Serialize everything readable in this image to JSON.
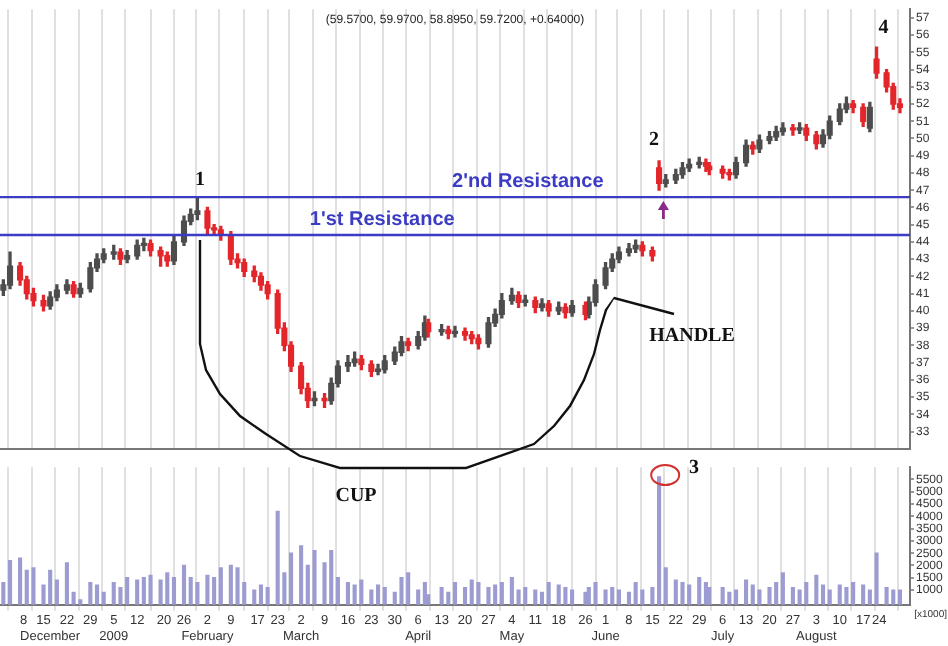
{
  "chart_data": [
    {
      "type": "candlestick",
      "title": "(59.5700, 59.9700, 58.8950, 59.7200, +0.64000)",
      "x": [
        "2008-12-03",
        "2008-12-05",
        "2008-12-08",
        "2008-12-10",
        "2008-12-12",
        "2008-12-15",
        "2008-12-17",
        "2008-12-19",
        "2008-12-22",
        "2008-12-24",
        "2008-12-26",
        "2008-12-29",
        "2008-12-31",
        "2009-01-02",
        "2009-01-05",
        "2009-01-07",
        "2009-01-09",
        "2009-01-12",
        "2009-01-14",
        "2009-01-16",
        "2009-01-19",
        "2009-01-21",
        "2009-01-23",
        "2009-01-26",
        "2009-01-28",
        "2009-01-30",
        "2009-02-02",
        "2009-02-04",
        "2009-02-06",
        "2009-02-09",
        "2009-02-11",
        "2009-02-13",
        "2009-02-16",
        "2009-02-18",
        "2009-02-20",
        "2009-02-23",
        "2009-02-25",
        "2009-02-27",
        "2009-03-02",
        "2009-03-04",
        "2009-03-06",
        "2009-03-09",
        "2009-03-11",
        "2009-03-13",
        "2009-03-16",
        "2009-03-18",
        "2009-03-20",
        "2009-03-23",
        "2009-03-25",
        "2009-03-27",
        "2009-03-30",
        "2009-04-01",
        "2009-04-03",
        "2009-04-06",
        "2009-04-08",
        "2009-04-09",
        "2009-04-13",
        "2009-04-15",
        "2009-04-17",
        "2009-04-20",
        "2009-04-22",
        "2009-04-24",
        "2009-04-27",
        "2009-04-29",
        "2009-05-01",
        "2009-05-04",
        "2009-05-06",
        "2009-05-08",
        "2009-05-11",
        "2009-05-13",
        "2009-05-15",
        "2009-05-18",
        "2009-05-20",
        "2009-05-22",
        "2009-05-26",
        "2009-05-27",
        "2009-05-29",
        "2009-06-01",
        "2009-06-03",
        "2009-06-05",
        "2009-06-08",
        "2009-06-10",
        "2009-06-12",
        "2009-06-15",
        "2009-06-17",
        "2009-06-19",
        "2009-06-22",
        "2009-06-24",
        "2009-06-26",
        "2009-06-29",
        "2009-07-01",
        "2009-07-02",
        "2009-07-06",
        "2009-07-08",
        "2009-07-10",
        "2009-07-13",
        "2009-07-15",
        "2009-07-17",
        "2009-07-20",
        "2009-07-22",
        "2009-07-24",
        "2009-07-27",
        "2009-07-29",
        "2009-07-31",
        "2009-08-03",
        "2009-08-05",
        "2009-08-07",
        "2009-08-10",
        "2009-08-12",
        "2009-08-14",
        "2009-08-17",
        "2009-08-19",
        "2009-08-21",
        "2009-08-24",
        "2009-08-26",
        "2009-08-28"
      ],
      "ohlc": [
        [
          41.2,
          41.8,
          40.9,
          41.5
        ],
        [
          41.5,
          43.4,
          41.3,
          42.6
        ],
        [
          42.6,
          42.8,
          41.5,
          41.8
        ],
        [
          41.8,
          42.0,
          40.7,
          41.0
        ],
        [
          41.0,
          41.3,
          40.3,
          40.6
        ],
        [
          40.6,
          40.9,
          40.0,
          40.3
        ],
        [
          40.3,
          41.1,
          40.1,
          40.8
        ],
        [
          40.8,
          41.5,
          40.6,
          41.2
        ],
        [
          41.2,
          41.8,
          41.0,
          41.5
        ],
        [
          41.5,
          41.7,
          40.8,
          41.0
        ],
        [
          41.0,
          41.6,
          40.8,
          41.3
        ],
        [
          41.3,
          42.8,
          41.1,
          42.5
        ],
        [
          42.5,
          43.3,
          42.3,
          43.0
        ],
        [
          43.0,
          43.6,
          42.8,
          43.3
        ],
        [
          43.3,
          43.8,
          43.0,
          43.4
        ],
        [
          43.4,
          43.6,
          42.7,
          43.0
        ],
        [
          43.0,
          43.5,
          42.8,
          43.2
        ],
        [
          43.2,
          44.1,
          43.0,
          43.8
        ],
        [
          43.8,
          44.2,
          43.5,
          43.9
        ],
        [
          43.9,
          44.1,
          43.2,
          43.5
        ],
        [
          43.5,
          43.7,
          42.6,
          43.2
        ],
        [
          43.2,
          43.4,
          42.6,
          42.9
        ],
        [
          42.9,
          44.3,
          42.7,
          44.0
        ],
        [
          44.0,
          45.5,
          43.8,
          45.2
        ],
        [
          45.2,
          45.9,
          45.0,
          45.6
        ],
        [
          45.6,
          46.6,
          45.3,
          45.8
        ],
        [
          45.8,
          46.0,
          44.5,
          44.8
        ],
        [
          44.8,
          45.0,
          44.4,
          44.7
        ],
        [
          44.7,
          44.9,
          44.1,
          44.4
        ],
        [
          44.4,
          44.6,
          42.7,
          43.0
        ],
        [
          43.0,
          43.3,
          42.5,
          42.8
        ],
        [
          42.8,
          43.0,
          42.0,
          42.3
        ],
        [
          42.3,
          42.6,
          41.7,
          42.0
        ],
        [
          42.0,
          42.2,
          41.2,
          41.5
        ],
        [
          41.5,
          41.7,
          40.7,
          41.0
        ],
        [
          41.0,
          41.2,
          38.7,
          39.0
        ],
        [
          39.0,
          39.3,
          37.7,
          38.0
        ],
        [
          38.0,
          38.2,
          36.5,
          36.8
        ],
        [
          36.8,
          37.0,
          35.2,
          35.5
        ],
        [
          35.5,
          35.8,
          34.4,
          34.8
        ],
        [
          34.8,
          35.3,
          34.5,
          34.9
        ],
        [
          34.9,
          35.2,
          34.4,
          34.8
        ],
        [
          34.8,
          36.1,
          34.6,
          35.8
        ],
        [
          35.8,
          37.1,
          35.6,
          36.8
        ],
        [
          36.8,
          37.4,
          36.5,
          37.0
        ],
        [
          37.0,
          37.6,
          36.8,
          37.2
        ],
        [
          37.2,
          37.4,
          36.6,
          36.9
        ],
        [
          36.9,
          37.1,
          36.2,
          36.5
        ],
        [
          36.5,
          36.9,
          36.3,
          36.6
        ],
        [
          36.6,
          37.4,
          36.4,
          37.1
        ],
        [
          37.1,
          37.9,
          36.9,
          37.6
        ],
        [
          37.6,
          38.5,
          37.4,
          38.2
        ],
        [
          38.2,
          38.4,
          37.7,
          38.0
        ],
        [
          38.0,
          38.8,
          37.8,
          38.5
        ],
        [
          38.5,
          39.7,
          38.3,
          39.3
        ],
        [
          39.3,
          39.5,
          38.5,
          38.8
        ],
        [
          38.8,
          39.2,
          38.6,
          38.9
        ],
        [
          38.9,
          39.1,
          38.4,
          38.7
        ],
        [
          38.7,
          39.1,
          38.5,
          38.8
        ],
        [
          38.8,
          39.0,
          38.3,
          38.6
        ],
        [
          38.6,
          38.8,
          38.1,
          38.4
        ],
        [
          38.4,
          38.6,
          37.8,
          38.1
        ],
        [
          38.1,
          39.6,
          37.9,
          39.3
        ],
        [
          39.3,
          40.1,
          39.1,
          39.8
        ],
        [
          39.8,
          41.0,
          39.6,
          40.6
        ],
        [
          40.6,
          41.3,
          40.4,
          40.9
        ],
        [
          40.9,
          41.1,
          40.2,
          40.5
        ],
        [
          40.5,
          40.9,
          40.3,
          40.6
        ],
        [
          40.6,
          40.8,
          39.9,
          40.2
        ],
        [
          40.2,
          40.7,
          40.0,
          40.4
        ],
        [
          40.4,
          40.6,
          39.7,
          40.0
        ],
        [
          40.0,
          40.5,
          39.8,
          40.2
        ],
        [
          40.2,
          40.4,
          39.6,
          39.9
        ],
        [
          39.9,
          40.6,
          39.7,
          40.3
        ],
        [
          40.3,
          40.5,
          39.5,
          39.8
        ],
        [
          39.8,
          40.8,
          39.6,
          40.5
        ],
        [
          40.5,
          41.8,
          40.3,
          41.5
        ],
        [
          41.5,
          42.8,
          41.3,
          42.5
        ],
        [
          42.5,
          43.3,
          42.3,
          43.0
        ],
        [
          43.0,
          43.7,
          42.8,
          43.4
        ],
        [
          43.4,
          43.9,
          43.2,
          43.6
        ],
        [
          43.6,
          44.1,
          43.4,
          43.8
        ],
        [
          43.8,
          44.0,
          43.2,
          43.5
        ],
        [
          43.5,
          43.7,
          42.9,
          43.2
        ],
        [
          48.3,
          48.7,
          47.0,
          47.4
        ],
        [
          47.4,
          47.9,
          47.2,
          47.6
        ],
        [
          47.6,
          48.2,
          47.4,
          47.9
        ],
        [
          47.9,
          48.6,
          47.7,
          48.3
        ],
        [
          48.3,
          48.8,
          48.1,
          48.5
        ],
        [
          48.5,
          48.9,
          48.3,
          48.6
        ],
        [
          48.6,
          48.8,
          48.1,
          48.4
        ],
        [
          48.4,
          48.6,
          47.9,
          48.2
        ],
        [
          48.2,
          48.4,
          47.7,
          48.0
        ],
        [
          48.0,
          48.2,
          47.6,
          47.9
        ],
        [
          47.9,
          48.9,
          47.7,
          48.6
        ],
        [
          48.6,
          49.9,
          48.4,
          49.6
        ],
        [
          49.6,
          49.8,
          49.1,
          49.4
        ],
        [
          49.4,
          50.2,
          49.2,
          49.9
        ],
        [
          49.9,
          50.4,
          49.7,
          50.1
        ],
        [
          50.1,
          50.7,
          49.9,
          50.4
        ],
        [
          50.4,
          50.9,
          50.2,
          50.6
        ],
        [
          50.6,
          50.8,
          50.2,
          50.5
        ],
        [
          50.5,
          50.9,
          50.3,
          50.6
        ],
        [
          50.6,
          50.8,
          49.9,
          50.2
        ],
        [
          50.2,
          50.4,
          49.4,
          49.7
        ],
        [
          49.7,
          50.5,
          49.5,
          50.2
        ],
        [
          50.2,
          51.3,
          50.0,
          51.0
        ],
        [
          51.0,
          52.0,
          50.8,
          51.7
        ],
        [
          51.7,
          52.4,
          51.5,
          52.0
        ],
        [
          52.0,
          52.2,
          51.5,
          51.8
        ],
        [
          51.8,
          52.0,
          50.7,
          51.0
        ],
        [
          50.6,
          52.1,
          50.4,
          51.8
        ],
        [
          54.6,
          55.3,
          53.5,
          53.8
        ],
        [
          53.8,
          54.0,
          52.7,
          53.0
        ],
        [
          53.0,
          53.2,
          51.7,
          52.0
        ],
        [
          52.0,
          52.3,
          51.5,
          51.8
        ]
      ],
      "colors": [
        "#4d4d4d",
        "#4d4d4d",
        "#e3262b",
        "#e3262b",
        "#e3262b",
        "#e3262b",
        "#4d4d4d",
        "#4d4d4d",
        "#4d4d4d",
        "#e3262b",
        "#4d4d4d",
        "#4d4d4d",
        "#4d4d4d",
        "#4d4d4d",
        "#4d4d4d",
        "#e3262b",
        "#4d4d4d",
        "#4d4d4d",
        "#4d4d4d",
        "#e3262b",
        "#e3262b",
        "#e3262b",
        "#4d4d4d",
        "#4d4d4d",
        "#4d4d4d",
        "#4d4d4d",
        "#e3262b",
        "#e3262b",
        "#e3262b",
        "#e3262b",
        "#e3262b",
        "#e3262b",
        "#e3262b",
        "#e3262b",
        "#e3262b",
        "#e3262b",
        "#e3262b",
        "#e3262b",
        "#e3262b",
        "#e3262b",
        "#4d4d4d",
        "#e3262b",
        "#4d4d4d",
        "#4d4d4d",
        "#4d4d4d",
        "#4d4d4d",
        "#e3262b",
        "#e3262b",
        "#4d4d4d",
        "#4d4d4d",
        "#4d4d4d",
        "#4d4d4d",
        "#e3262b",
        "#4d4d4d",
        "#4d4d4d",
        "#e3262b",
        "#4d4d4d",
        "#e3262b",
        "#4d4d4d",
        "#e3262b",
        "#e3262b",
        "#e3262b",
        "#4d4d4d",
        "#4d4d4d",
        "#4d4d4d",
        "#4d4d4d",
        "#e3262b",
        "#4d4d4d",
        "#e3262b",
        "#4d4d4d",
        "#e3262b",
        "#4d4d4d",
        "#e3262b",
        "#4d4d4d",
        "#e3262b",
        "#4d4d4d",
        "#4d4d4d",
        "#4d4d4d",
        "#4d4d4d",
        "#4d4d4d",
        "#4d4d4d",
        "#4d4d4d",
        "#e3262b",
        "#e3262b",
        "#e3262b",
        "#4d4d4d",
        "#4d4d4d",
        "#4d4d4d",
        "#4d4d4d",
        "#4d4d4d",
        "#e3262b",
        "#e3262b",
        "#e3262b",
        "#e3262b",
        "#4d4d4d",
        "#4d4d4d",
        "#e3262b",
        "#4d4d4d",
        "#4d4d4d",
        "#4d4d4d",
        "#4d4d4d",
        "#e3262b",
        "#4d4d4d",
        "#e3262b",
        "#e3262b",
        "#4d4d4d",
        "#4d4d4d",
        "#4d4d4d",
        "#4d4d4d",
        "#e3262b",
        "#e3262b",
        "#4d4d4d",
        "#e3262b",
        "#e3262b",
        "#e3262b",
        "#e3262b"
      ],
      "xlim": [
        "2008-12-02",
        "2009-08-31"
      ],
      "xticks": [
        {
          "value": "2008-12-08",
          "label": null
        },
        {
          "value": "2008-12-15",
          "label": null
        },
        {
          "value": "2008-12-22",
          "label": null
        },
        {
          "value": "2008-12-29",
          "label": null
        },
        {
          "value": "2009-01-05",
          "label": null
        },
        {
          "value": "2009-01-12",
          "label": null
        },
        {
          "value": "2009-01-20",
          "label": null
        },
        {
          "value": "2009-01-26",
          "label": null
        },
        {
          "value": "2009-02-02",
          "label": null
        },
        {
          "value": "2009-02-09",
          "label": null
        },
        {
          "value": "2009-02-17",
          "label": null
        },
        {
          "value": "2009-02-23",
          "label": null
        },
        {
          "value": "2009-03-02",
          "label": null
        },
        {
          "value": "2009-03-09",
          "label": null
        },
        {
          "value": "2009-03-16",
          "label": null
        },
        {
          "value": "2009-03-23",
          "label": null
        },
        {
          "value": "2009-03-30",
          "label": null
        },
        {
          "value": "2009-04-06",
          "label": null
        },
        {
          "value": "2009-04-13",
          "label": null
        },
        {
          "value": "2009-04-20",
          "label": null
        },
        {
          "value": "2009-04-27",
          "label": null
        },
        {
          "value": "2009-05-04",
          "label": null
        },
        {
          "value": "2009-05-11",
          "label": null
        },
        {
          "value": "2009-05-18",
          "label": null
        },
        {
          "value": "2009-05-26",
          "label": null
        },
        {
          "value": "2009-06-01",
          "label": null
        },
        {
          "value": "2009-06-08",
          "label": null
        },
        {
          "value": "2009-06-15",
          "label": null
        },
        {
          "value": "2009-06-22",
          "label": null
        },
        {
          "value": "2009-06-29",
          "label": null
        },
        {
          "value": "2009-07-06",
          "label": null
        },
        {
          "value": "2009-07-13",
          "label": null
        },
        {
          "value": "2009-07-20",
          "label": null
        },
        {
          "value": "2009-07-27",
          "label": null
        },
        {
          "value": "2009-08-03",
          "label": null
        },
        {
          "value": "2009-08-10",
          "label": null
        },
        {
          "value": "2009-08-17",
          "label": null
        },
        {
          "value": "2009-08-24",
          "label": null
        }
      ],
      "ylim": [
        32,
        57.5
      ],
      "yticks": [
        33,
        34,
        35,
        36,
        37,
        38,
        39,
        40,
        41,
        42,
        43,
        44,
        45,
        46,
        47,
        48,
        49,
        50,
        51,
        52,
        53,
        54,
        55,
        56,
        57
      ],
      "tick_labels": "y",
      "grid": "x",
      "ref_lines": [
        {
          "axis": "y",
          "value": 44.4,
          "label": "1'st Resistance",
          "color": "#3b3bc4"
        },
        {
          "axis": "y",
          "value": 46.6,
          "label": "2'nd Resistance",
          "color": "#3b3bc4"
        }
      ],
      "annotations": [
        "1",
        "2",
        "4",
        "HANDLE"
      ]
    },
    {
      "type": "bar",
      "x": [
        "2008-12-03",
        "2008-12-05",
        "2008-12-08",
        "2008-12-10",
        "2008-12-12",
        "2008-12-15",
        "2008-12-17",
        "2008-12-19",
        "2008-12-22",
        "2008-12-24",
        "2008-12-26",
        "2008-12-29",
        "2008-12-31",
        "2009-01-02",
        "2009-01-05",
        "2009-01-07",
        "2009-01-09",
        "2009-01-12",
        "2009-01-14",
        "2009-01-16",
        "2009-01-19",
        "2009-01-21",
        "2009-01-23",
        "2009-01-26",
        "2009-01-28",
        "2009-01-30",
        "2009-02-02",
        "2009-02-04",
        "2009-02-06",
        "2009-02-09",
        "2009-02-11",
        "2009-02-13",
        "2009-02-16",
        "2009-02-18",
        "2009-02-20",
        "2009-02-23",
        "2009-02-25",
        "2009-02-27",
        "2009-03-02",
        "2009-03-04",
        "2009-03-06",
        "2009-03-09",
        "2009-03-11",
        "2009-03-13",
        "2009-03-16",
        "2009-03-18",
        "2009-03-20",
        "2009-03-23",
        "2009-03-25",
        "2009-03-27",
        "2009-03-30",
        "2009-04-01",
        "2009-04-03",
        "2009-04-06",
        "2009-04-08",
        "2009-04-09",
        "2009-04-13",
        "2009-04-15",
        "2009-04-17",
        "2009-04-20",
        "2009-04-22",
        "2009-04-24",
        "2009-04-27",
        "2009-04-29",
        "2009-05-01",
        "2009-05-04",
        "2009-05-06",
        "2009-05-08",
        "2009-05-11",
        "2009-05-13",
        "2009-05-15",
        "2009-05-18",
        "2009-05-20",
        "2009-05-22",
        "2009-05-26",
        "2009-05-27",
        "2009-05-29",
        "2009-06-01",
        "2009-06-03",
        "2009-06-05",
        "2009-06-08",
        "2009-06-10",
        "2009-06-12",
        "2009-06-15",
        "2009-06-17",
        "2009-06-19",
        "2009-06-22",
        "2009-06-24",
        "2009-06-26",
        "2009-06-29",
        "2009-07-01",
        "2009-07-02",
        "2009-07-06",
        "2009-07-08",
        "2009-07-10",
        "2009-07-13",
        "2009-07-15",
        "2009-07-17",
        "2009-07-20",
        "2009-07-22",
        "2009-07-24",
        "2009-07-27",
        "2009-07-29",
        "2009-07-31",
        "2009-08-03",
        "2009-08-05",
        "2009-08-07",
        "2009-08-10",
        "2009-08-12",
        "2009-08-14",
        "2009-08-17",
        "2009-08-19",
        "2009-08-21",
        "2009-08-24",
        "2009-08-26",
        "2009-08-28"
      ],
      "values": [
        1300,
        2200,
        2300,
        1800,
        1900,
        1200,
        1800,
        1400,
        2100,
        900,
        600,
        1300,
        1200,
        900,
        1300,
        1100,
        1500,
        1400,
        1500,
        1600,
        1400,
        1700,
        1500,
        2000,
        1500,
        1300,
        1600,
        1500,
        1900,
        2000,
        1900,
        1300,
        1000,
        1200,
        1100,
        4200,
        1700,
        2500,
        2800,
        2000,
        2600,
        2100,
        2600,
        1500,
        1300,
        1200,
        1400,
        1000,
        1200,
        1100,
        900,
        1500,
        1700,
        1000,
        1300,
        800,
        1100,
        900,
        1300,
        1100,
        1400,
        1300,
        1100,
        1200,
        1300,
        1500,
        1000,
        1100,
        1000,
        900,
        1300,
        1200,
        1100,
        1000,
        900,
        1100,
        1300,
        1000,
        1100,
        1000,
        900,
        1300,
        1000,
        1100,
        5600,
        1900,
        1400,
        1300,
        1200,
        1500,
        1300,
        1100,
        1100,
        900,
        1000,
        1400,
        1200,
        1000,
        1100,
        1300,
        1700,
        1100,
        1000,
        1300,
        1600,
        1200,
        1000,
        1200,
        1100,
        1300,
        1200,
        1000,
        2500,
        1100,
        1000,
        1000
      ],
      "color": "#9c9cd2",
      "xlim": [
        "2008-12-02",
        "2009-08-31"
      ],
      "xticks": [
        {
          "value": "2008-12-08",
          "label": "8\nDecember"
        },
        {
          "value": "2008-12-15",
          "label": "15"
        },
        {
          "value": "2008-12-22",
          "label": "22"
        },
        {
          "value": "2008-12-29",
          "label": "29"
        },
        {
          "value": "2009-01-05",
          "label": "5\n2009"
        },
        {
          "value": "2009-01-12",
          "label": "12"
        },
        {
          "value": "2009-01-20",
          "label": "20"
        },
        {
          "value": "2009-01-26",
          "label": "26"
        },
        {
          "value": "2009-02-02",
          "label": "2\nFebruary"
        },
        {
          "value": "2009-02-09",
          "label": "9"
        },
        {
          "value": "2009-02-17",
          "label": "17"
        },
        {
          "value": "2009-02-23",
          "label": "23"
        },
        {
          "value": "2009-03-02",
          "label": "2\nMarch"
        },
        {
          "value": "2009-03-09",
          "label": "9"
        },
        {
          "value": "2009-03-16",
          "label": "16"
        },
        {
          "value": "2009-03-23",
          "label": "23"
        },
        {
          "value": "2009-03-30",
          "label": "30"
        },
        {
          "value": "2009-04-06",
          "label": "6\nApril"
        },
        {
          "value": "2009-04-13",
          "label": "13"
        },
        {
          "value": "2009-04-20",
          "label": "20"
        },
        {
          "value": "2009-04-27",
          "label": "27"
        },
        {
          "value": "2009-05-04",
          "label": "4\nMay"
        },
        {
          "value": "2009-05-11",
          "label": "11"
        },
        {
          "value": "2009-05-18",
          "label": "18"
        },
        {
          "value": "2009-05-26",
          "label": "26"
        },
        {
          "value": "2009-06-01",
          "label": "1\nJune"
        },
        {
          "value": "2009-06-08",
          "label": "8"
        },
        {
          "value": "2009-06-15",
          "label": "15"
        },
        {
          "value": "2009-06-22",
          "label": "22"
        },
        {
          "value": "2009-06-29",
          "label": "29"
        },
        {
          "value": "2009-07-06",
          "label": "6\nJuly"
        },
        {
          "value": "2009-07-13",
          "label": "13"
        },
        {
          "value": "2009-07-20",
          "label": "20"
        },
        {
          "value": "2009-07-27",
          "label": "27"
        },
        {
          "value": "2009-08-03",
          "label": "3\nAugust"
        },
        {
          "value": "2009-08-10",
          "label": "10"
        },
        {
          "value": "2009-08-17",
          "label": "17"
        },
        {
          "value": "2009-08-24",
          "label": "24"
        }
      ],
      "ylim": [
        400,
        6000
      ],
      "yticks": [
        1000,
        1500,
        2000,
        2500,
        3000,
        3500,
        4000,
        4500,
        5000,
        5500
      ],
      "ylabel": "[x1000]",
      "grid": "x",
      "annotations": [
        "3",
        "CUP"
      ]
    }
  ]
}
